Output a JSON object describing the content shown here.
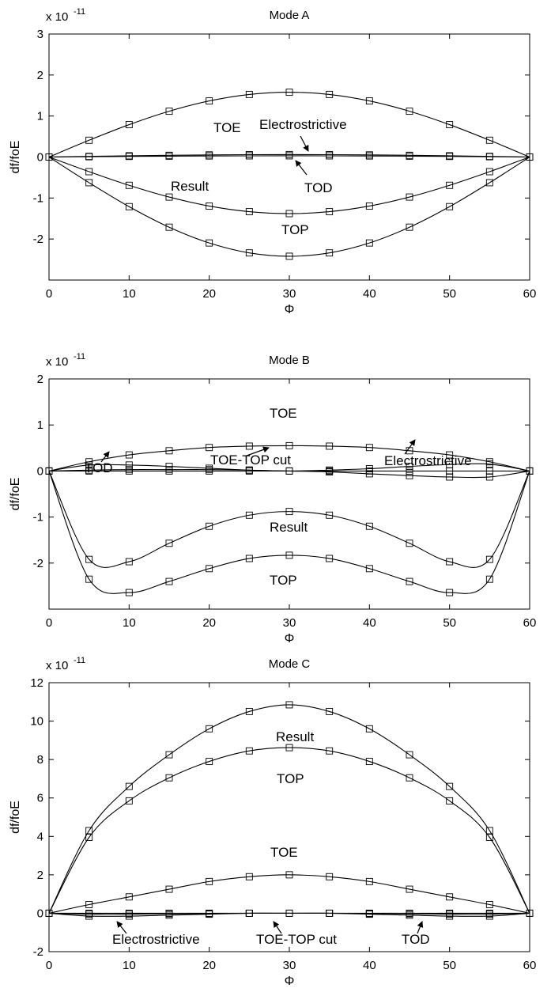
{
  "chart_data": [
    {
      "type": "line",
      "title": "Mode A",
      "xlabel": "Φ",
      "ylabel": "df/foE",
      "exponent": {
        "base": "x 10",
        "power": "-11"
      },
      "xlim": [
        0,
        60
      ],
      "ylim": [
        -3,
        3
      ],
      "xticks": [
        0,
        10,
        20,
        30,
        40,
        50,
        60
      ],
      "yticks": [
        -2,
        -1,
        0,
        1,
        2,
        3
      ],
      "marker_x": [
        0,
        5,
        10,
        15,
        20,
        25,
        30,
        35,
        40,
        45,
        50,
        55,
        60
      ],
      "series": [
        {
          "name": "TOE",
          "peak": 1.58
        },
        {
          "name": "Electrostrictive",
          "peak": 0.06
        },
        {
          "name": "TOD",
          "peak": 0.03
        },
        {
          "name": "Result",
          "peak": -1.38
        },
        {
          "name": "TOP",
          "peak": -2.42
        }
      ],
      "annotations": [
        "TOE",
        "Electrostrictive",
        "TOD",
        "Result",
        "TOP"
      ]
    },
    {
      "type": "line",
      "title": "Mode B",
      "xlabel": "Φ",
      "ylabel": "df/foE",
      "exponent": {
        "base": "x 10",
        "power": "-11"
      },
      "xlim": [
        0,
        60
      ],
      "ylim": [
        -3,
        2
      ],
      "xticks": [
        0,
        10,
        20,
        30,
        40,
        50,
        60
      ],
      "yticks": [
        -2,
        -1,
        0,
        1,
        2
      ],
      "series": [
        {
          "name": "TOE",
          "x": [
            0,
            5,
            10,
            15,
            20,
            25,
            30,
            35,
            40,
            45,
            50,
            55,
            60
          ],
          "y": [
            0,
            0.2,
            0.35,
            0.44,
            0.51,
            0.54,
            0.55,
            0.54,
            0.51,
            0.44,
            0.35,
            0.2,
            0
          ]
        },
        {
          "name": "TOD",
          "x": [
            0,
            5,
            10,
            15,
            20,
            25,
            30,
            35,
            40,
            45,
            50,
            55,
            60
          ],
          "y": [
            0,
            0.13,
            0.13,
            0.1,
            0.06,
            0.02,
            0,
            -0.02,
            -0.06,
            -0.1,
            -0.13,
            -0.13,
            0
          ]
        },
        {
          "name": "Electrostrictive",
          "x": [
            0,
            5,
            10,
            15,
            20,
            25,
            30,
            35,
            40,
            45,
            50,
            55,
            60
          ],
          "y": [
            0,
            0.02,
            0.03,
            0.03,
            0.03,
            0.02,
            0,
            0.02,
            0.05,
            0.1,
            0.14,
            0.15,
            0
          ]
        },
        {
          "name": "TOE-TOP cut",
          "x": [
            0,
            5,
            10,
            15,
            20,
            25,
            30,
            35,
            40,
            45,
            50,
            55,
            60
          ],
          "y": [
            0,
            0,
            0,
            0,
            0,
            0,
            0,
            0,
            0,
            0,
            0,
            0,
            0
          ]
        },
        {
          "name": "Result",
          "x": [
            0,
            5,
            10,
            15,
            20,
            25,
            30,
            35,
            40,
            45,
            50,
            55,
            60
          ],
          "y": [
            0,
            -1.92,
            -1.97,
            -1.57,
            -1.2,
            -0.96,
            -0.88,
            -0.96,
            -1.2,
            -1.57,
            -1.97,
            -1.92,
            0
          ]
        },
        {
          "name": "TOP",
          "x": [
            0,
            5,
            10,
            15,
            20,
            25,
            30,
            35,
            40,
            45,
            50,
            55,
            60
          ],
          "y": [
            0,
            -2.35,
            -2.64,
            -2.4,
            -2.12,
            -1.9,
            -1.83,
            -1.9,
            -2.12,
            -2.4,
            -2.64,
            -2.35,
            0
          ]
        }
      ],
      "annotations": [
        "TOE",
        "TOD",
        "TOE-TOP cut",
        "Electrostrictive",
        "Result",
        "TOP"
      ]
    },
    {
      "type": "line",
      "title": "Mode C",
      "xlabel": "Φ",
      "ylabel": "df/foE",
      "exponent": {
        "base": "x 10",
        "power": "-11"
      },
      "xlim": [
        0,
        60
      ],
      "ylim": [
        -2,
        12
      ],
      "xticks": [
        0,
        10,
        20,
        30,
        40,
        50,
        60
      ],
      "yticks": [
        -2,
        0,
        2,
        4,
        6,
        8,
        10,
        12
      ],
      "series": [
        {
          "name": "Result",
          "x": [
            0,
            5,
            10,
            15,
            20,
            25,
            30,
            35,
            40,
            45,
            50,
            55,
            60
          ],
          "y": [
            0,
            4.3,
            6.6,
            8.25,
            9.6,
            10.5,
            10.85,
            10.5,
            9.6,
            8.25,
            6.6,
            4.3,
            0
          ]
        },
        {
          "name": "TOP",
          "x": [
            0,
            5,
            10,
            15,
            20,
            25,
            30,
            35,
            40,
            45,
            50,
            55,
            60
          ],
          "y": [
            0,
            3.95,
            5.85,
            7.05,
            7.9,
            8.45,
            8.62,
            8.45,
            7.9,
            7.05,
            5.85,
            3.95,
            0
          ]
        },
        {
          "name": "TOE",
          "x": [
            0,
            5,
            10,
            15,
            20,
            25,
            30,
            35,
            40,
            45,
            50,
            55,
            60
          ],
          "y": [
            0,
            0.45,
            0.85,
            1.25,
            1.65,
            1.9,
            2.0,
            1.9,
            1.65,
            1.25,
            0.85,
            0.45,
            0
          ]
        },
        {
          "name": "TOE-TOP cut",
          "x": [
            0,
            5,
            10,
            15,
            20,
            25,
            30,
            35,
            40,
            45,
            50,
            55,
            60
          ],
          "y": [
            0,
            0,
            0,
            0,
            0,
            0,
            0,
            0,
            0,
            0,
            0,
            0,
            0
          ]
        },
        {
          "name": "Electrostrictive",
          "x": [
            0,
            5,
            10,
            15,
            20,
            25,
            30,
            35,
            40,
            45,
            50,
            55,
            60
          ],
          "y": [
            0,
            -0.15,
            -0.15,
            -0.1,
            -0.05,
            0,
            0,
            0,
            -0.05,
            -0.1,
            -0.15,
            -0.15,
            0
          ]
        },
        {
          "name": "TOD",
          "x": [
            0,
            5,
            10,
            15,
            20,
            25,
            30,
            35,
            40,
            45,
            50,
            55,
            60
          ],
          "y": [
            0,
            -0.05,
            -0.05,
            -0.03,
            -0.02,
            0,
            0,
            0,
            -0.02,
            -0.03,
            -0.05,
            -0.05,
            0
          ]
        }
      ],
      "annotations": [
        "Result",
        "TOP",
        "TOE",
        "Electrostrictive",
        "TOE-TOP cut",
        "TOD"
      ]
    }
  ]
}
